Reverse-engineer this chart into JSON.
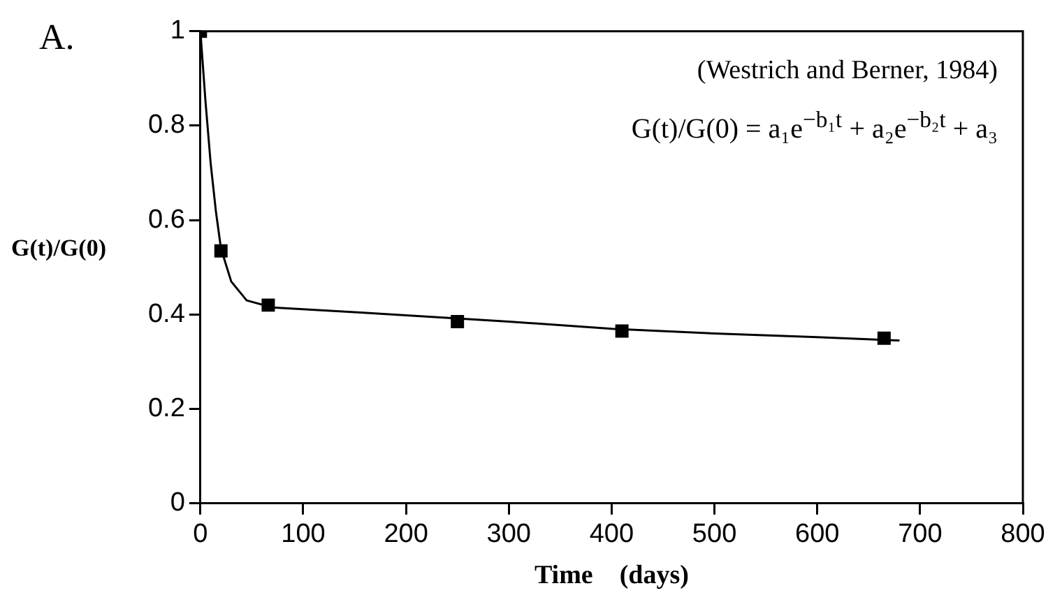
{
  "chart_data": {
    "type": "scatter",
    "xlabel": "Time    (days)",
    "ylabel": "G(t)/G(0)",
    "annotations": [
      "A.",
      "(Westrich and Berner, 1984)",
      "G(t)/G(0) = a₁e$^{−b₁t}$ + a₂e$^{−b₂t}$ + a₃"
    ],
    "xlim": [
      0,
      800
    ],
    "xticks": [
      0,
      100,
      200,
      300,
      400,
      500,
      600,
      700,
      800
    ],
    "ylim": [
      0,
      1
    ],
    "yticks": [
      0,
      0.2,
      0.4,
      0.6,
      0.8,
      1
    ],
    "grid": false,
    "legend": false,
    "series": [
      {
        "marker": "square",
        "color": "#000000",
        "x": [
          0,
          20,
          66,
          250,
          410,
          665
        ],
        "values": [
          1,
          0.535,
          0.42,
          0.385,
          0.365,
          0.35
        ]
      },
      {
        "type": "line",
        "marker": "none",
        "color": "#000000",
        "x": [
          0,
          5,
          10,
          15,
          20,
          30,
          45,
          70,
          150,
          300,
          400,
          500,
          600,
          680
        ],
        "values": [
          1,
          0.85,
          0.72,
          0.62,
          0.54,
          0.47,
          0.43,
          0.415,
          0.405,
          0.385,
          0.37,
          0.36,
          0.352,
          0.345
        ]
      }
    ]
  }
}
